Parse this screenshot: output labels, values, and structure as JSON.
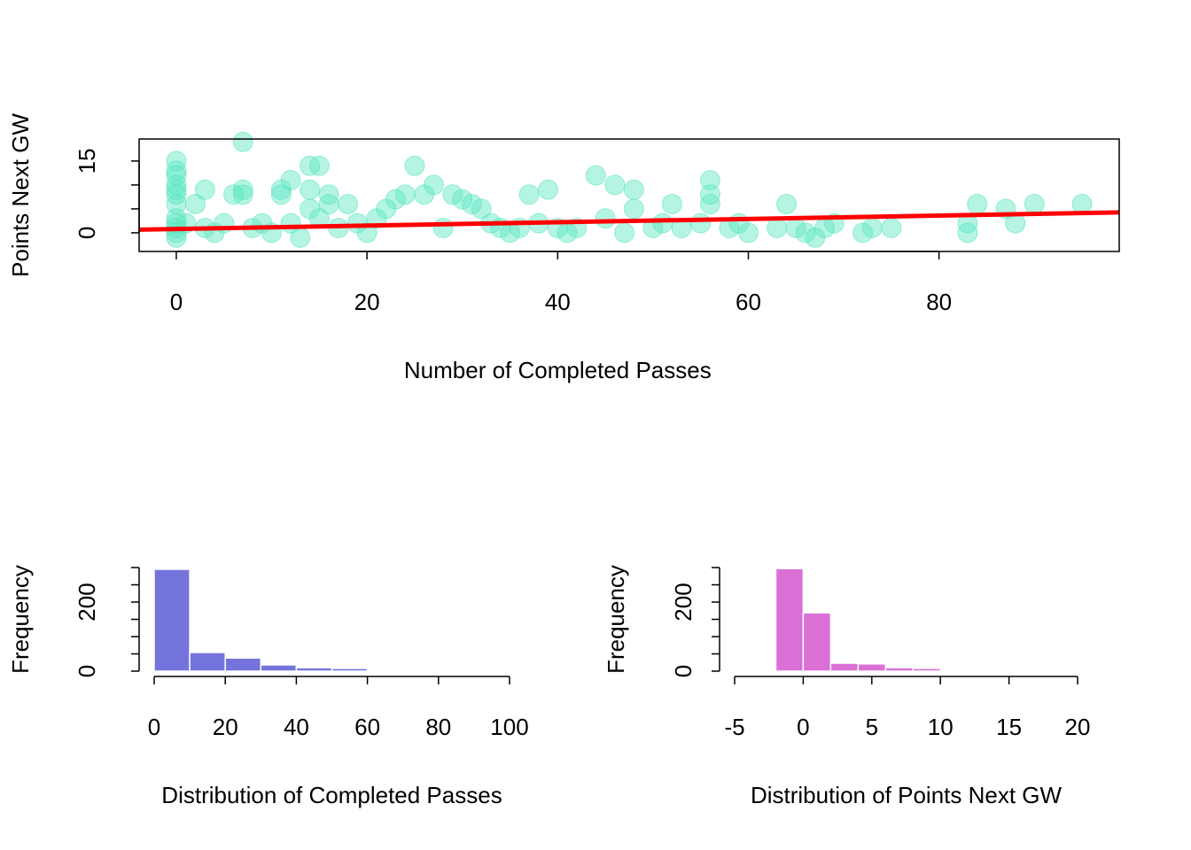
{
  "chart_data": [
    {
      "type": "scatter",
      "xlabel": "Number of Completed Passes",
      "ylabel": "Points Next GW",
      "color": "#5ce6c0",
      "x": [
        0,
        0,
        0,
        0,
        0,
        0,
        0,
        0,
        0,
        0,
        0,
        0,
        1,
        2,
        3,
        3,
        4,
        5,
        6,
        7,
        7,
        7,
        8,
        9,
        10,
        11,
        11,
        12,
        12,
        13,
        14,
        14,
        14,
        15,
        15,
        16,
        16,
        17,
        18,
        19,
        20,
        21,
        22,
        23,
        24,
        25,
        26,
        27,
        28,
        29,
        30,
        31,
        32,
        33,
        34,
        35,
        36,
        37,
        38,
        39,
        40,
        41,
        42,
        44,
        45,
        46,
        47,
        48,
        48,
        50,
        51,
        52,
        53,
        55,
        56,
        56,
        56,
        58,
        59,
        60,
        63,
        64,
        65,
        66,
        67,
        68,
        69,
        72,
        73,
        75,
        83,
        83,
        84,
        87,
        88,
        90,
        95
      ],
      "values": [
        15,
        13,
        12,
        10,
        9,
        8,
        6,
        3,
        2,
        1,
        0,
        -1,
        2,
        6,
        9,
        1,
        0,
        2,
        8,
        19,
        9,
        8,
        1,
        2,
        0,
        9,
        8,
        11,
        2,
        -1,
        14,
        9,
        5,
        14,
        3,
        8,
        6,
        1,
        6,
        2,
        0,
        3,
        5,
        7,
        8,
        14,
        8,
        10,
        1,
        8,
        7,
        6,
        5,
        2,
        1,
        0,
        1,
        8,
        2,
        9,
        1,
        0,
        1,
        12,
        3,
        10,
        0,
        9,
        5,
        1,
        2,
        6,
        1,
        2,
        11,
        8,
        6,
        1,
        2,
        0,
        1,
        6,
        1,
        0,
        -1,
        1,
        2,
        0,
        1,
        1,
        2,
        0,
        6,
        5,
        2,
        6,
        6
      ],
      "trend": {
        "intercept": 0.8,
        "slope": 0.035,
        "color": "#ff0000"
      },
      "xlim": [
        -3.9,
        98.9
      ],
      "xticks": [
        0,
        20,
        40,
        60,
        80
      ],
      "ylim": [
        -3.9,
        19.6
      ],
      "yticks": [
        0,
        15
      ],
      "yminorticks": [
        5,
        10
      ]
    },
    {
      "type": "histogram",
      "xlabel": "Distribution of Completed Passes",
      "ylabel": "Frequency",
      "color": "#7474dc",
      "bins": [
        0,
        10,
        20,
        30,
        40,
        50,
        60,
        70
      ],
      "values": [
        295,
        54,
        38,
        18,
        10,
        8,
        3
      ],
      "xlim": [
        0,
        100
      ],
      "xticks": [
        0,
        20,
        40,
        60,
        80,
        100
      ],
      "ylim": [
        0,
        300
      ],
      "yticks": [
        0,
        200
      ],
      "yminorticks": [
        50,
        100,
        150,
        250,
        300
      ]
    },
    {
      "type": "histogram",
      "xlabel": "Distribution of Points Next GW",
      "ylabel": "Frequency",
      "color": "#da70d6",
      "bins": [
        -2,
        0,
        2,
        4,
        6,
        8,
        10
      ],
      "values": [
        297,
        169,
        23,
        21,
        10,
        8
      ],
      "xlim": [
        -5,
        20
      ],
      "xticks": [
        -5,
        0,
        5,
        10,
        15,
        20
      ],
      "ylim": [
        0,
        300
      ],
      "yticks": [
        0,
        200
      ],
      "yminorticks": [
        50,
        100,
        150,
        250,
        300
      ]
    }
  ]
}
